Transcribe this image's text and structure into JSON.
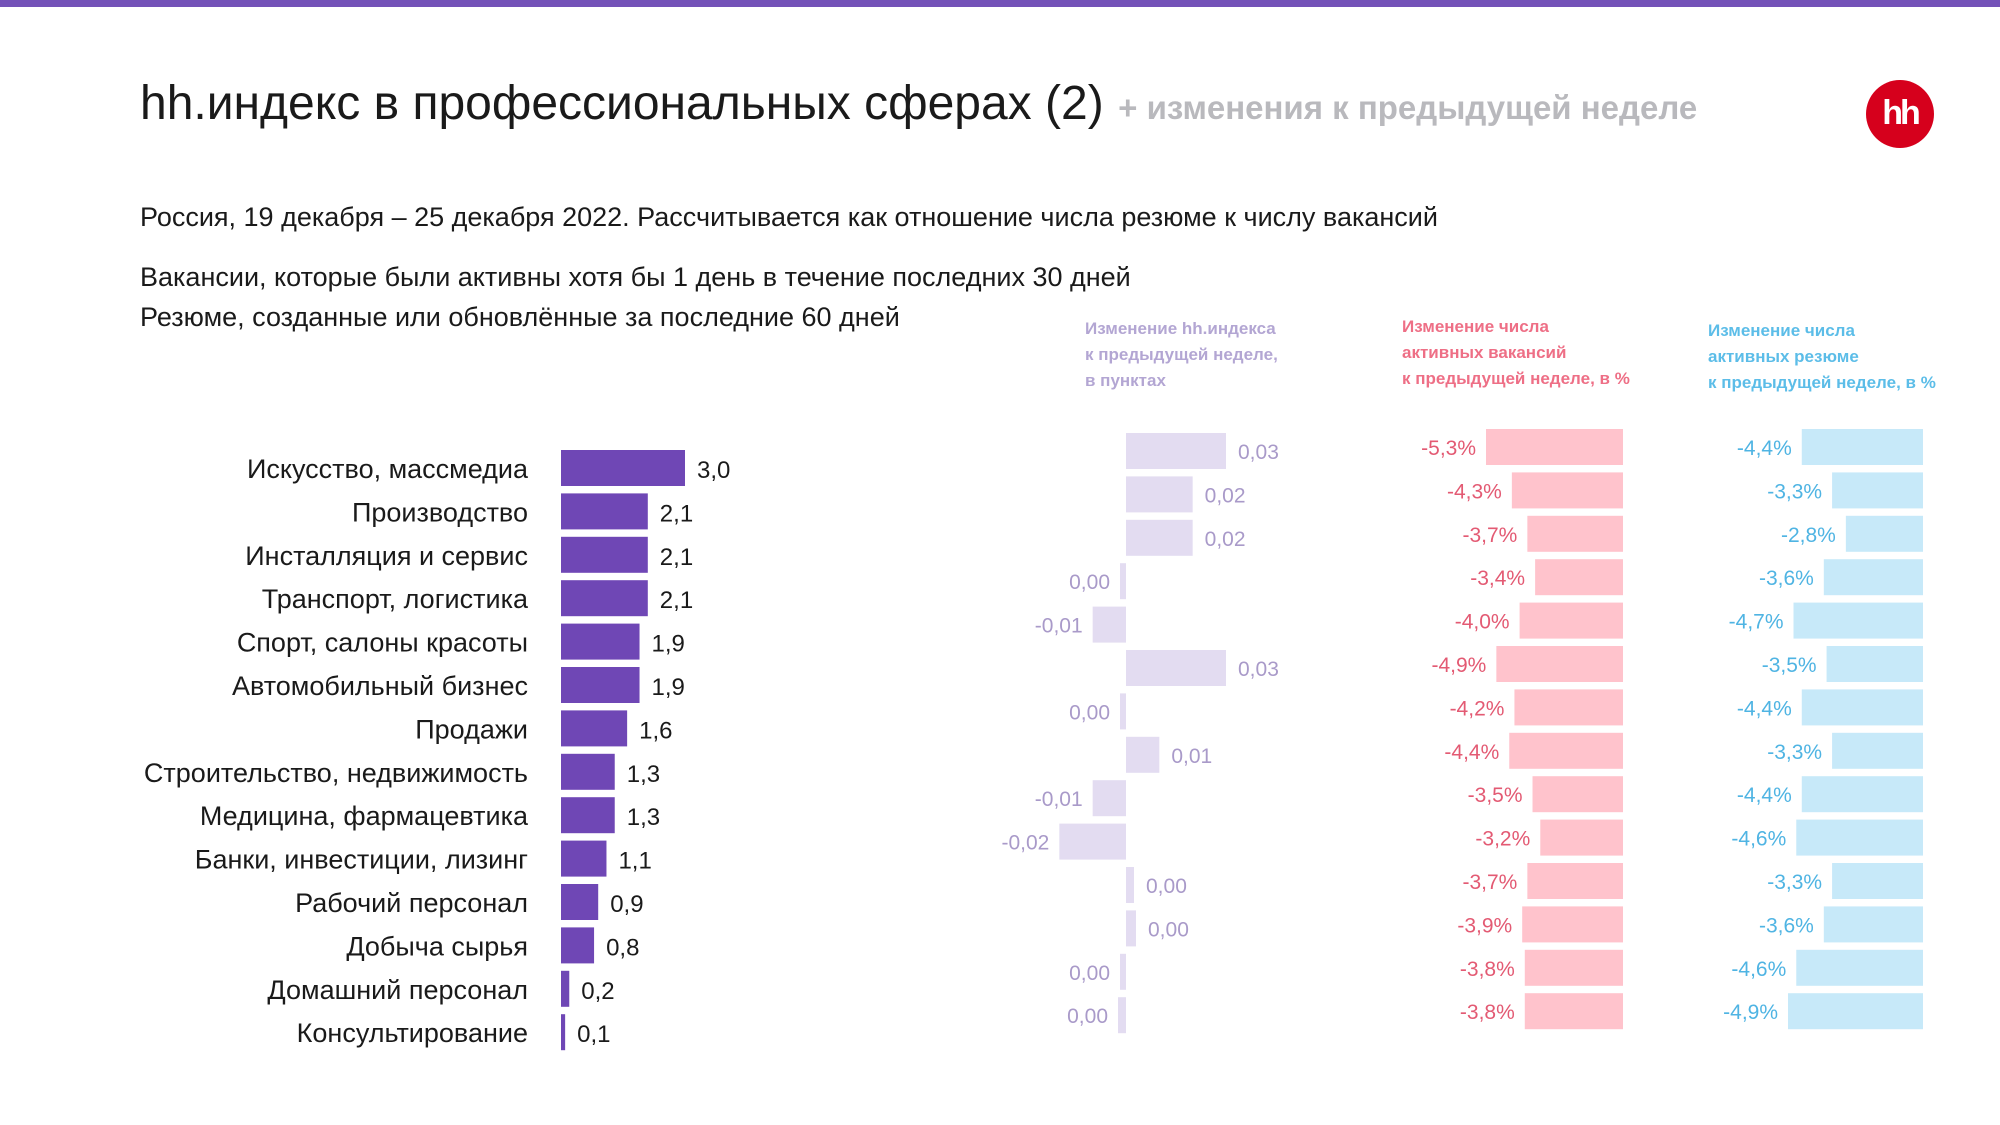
{
  "header": {
    "title": "hh.индекс в профессиональных сферах (2)",
    "title_suffix": "+ изменения к предыдущей неделе",
    "logo_text": "hh"
  },
  "subtitle": "Россия, 19 декабря – 25 декабря 2022. Рассчитывается как отношение числа резюме к числу вакансий",
  "notes": [
    "Вакансии, которые были активны хотя бы 1 день в течение последних 30 дней",
    "Резюме, созданные или обновлённые за последние 60 дней"
  ],
  "colors": {
    "brand_bar": "#7452b8",
    "index_bar": "#6f47b5",
    "index_change_bar": "#e3dcf1",
    "index_change_text": "#a99ac9",
    "vacancy_bar": "#ffc3cc",
    "vacancy_text": "#e35a73",
    "resume_bar": "#c7e9f9",
    "resume_text": "#4fb4e3",
    "logo": "#d6001c"
  },
  "chart_data": [
    {
      "type": "bar",
      "orientation": "horizontal",
      "categories": [
        "Искусство, массмедиа",
        "Производство",
        "Инсталляция и сервис",
        "Транспорт, логистика",
        "Спорт, салоны красоты",
        "Автомобильный бизнес",
        "Продажи",
        "Строительство, недвижимость",
        "Медицина, фармацевтика",
        "Банки, инвестиции, лизинг",
        "Рабочий персонал",
        "Добыча сырья",
        "Домашний персонал",
        "Консультирование"
      ],
      "values": [
        3.0,
        2.1,
        2.1,
        2.1,
        1.9,
        1.9,
        1.6,
        1.3,
        1.3,
        1.1,
        0.9,
        0.8,
        0.2,
        0.1
      ],
      "labels": [
        "3,0",
        "2,1",
        "2,1",
        "2,1",
        "1,9",
        "1,9",
        "1,6",
        "1,3",
        "1,3",
        "1,1",
        "0,9",
        "0,8",
        "0,2",
        "0,1"
      ]
    },
    {
      "type": "bar",
      "orientation": "horizontal",
      "title_lines": [
        "Изменение hh.индекса",
        "к предыдущей неделе,",
        "в пунктах"
      ],
      "values": [
        0.03,
        0.02,
        0.02,
        0.0,
        -0.01,
        0.03,
        0.0,
        0.01,
        -0.01,
        -0.02,
        0.0,
        0.0,
        0.0,
        0.0
      ],
      "labels": [
        "0,03",
        "0,02",
        "0,02",
        "0,00",
        "-0,01",
        "0,03",
        "0,00",
        "0,01",
        "-0,01",
        "-0,02",
        "0,00",
        "0,00",
        "0,00",
        "0,00"
      ]
    },
    {
      "type": "bar",
      "orientation": "horizontal",
      "title_lines": [
        "Изменение числа",
        "активных вакансий",
        "к предыдущей неделе, в %"
      ],
      "values": [
        -5.3,
        -4.3,
        -3.7,
        -3.4,
        -4.0,
        -4.9,
        -4.2,
        -4.4,
        -3.5,
        -3.2,
        -3.7,
        -3.9,
        -3.8,
        -3.8
      ],
      "labels": [
        "-5,3%",
        "-4,3%",
        "-3,7%",
        "-3,4%",
        "-4,0%",
        "-4,9%",
        "-4,2%",
        "-4,4%",
        "-3,5%",
        "-3,2%",
        "-3,7%",
        "-3,9%",
        "-3,8%",
        "-3,8%"
      ]
    },
    {
      "type": "bar",
      "orientation": "horizontal",
      "title_lines": [
        "Изменение числа",
        "активных резюме",
        "к предыдущей неделе, в %"
      ],
      "values": [
        -4.4,
        -3.3,
        -2.8,
        -3.6,
        -4.7,
        -3.5,
        -4.4,
        -3.3,
        -4.4,
        -4.6,
        -3.3,
        -3.6,
        -4.6,
        -4.9
      ],
      "labels": [
        "-4,4%",
        "-3,3%",
        "-2,8%",
        "-3,6%",
        "-4,7%",
        "-3,5%",
        "-4,4%",
        "-3,3%",
        "-4,4%",
        "-4,6%",
        "-3,3%",
        "-3,6%",
        "-4,6%",
        "-4,9%"
      ]
    }
  ]
}
